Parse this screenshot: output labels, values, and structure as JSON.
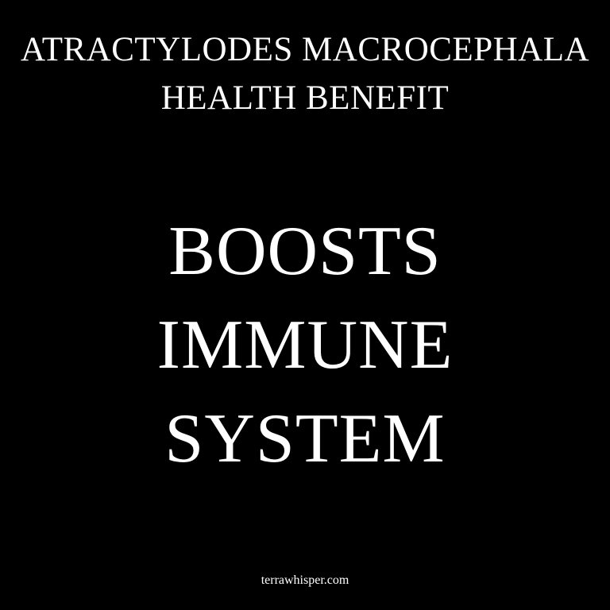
{
  "header": {
    "subject": "ATRACTYLODES MACROCEPHALA",
    "subtitle": "HEALTH BENEFIT"
  },
  "benefit": {
    "lines": [
      "BOOSTS",
      "IMMUNE",
      "SYSTEM"
    ]
  },
  "footer": {
    "website": "terrawhisper.com"
  },
  "colors": {
    "background": "#000000",
    "text": "#ffffff"
  }
}
